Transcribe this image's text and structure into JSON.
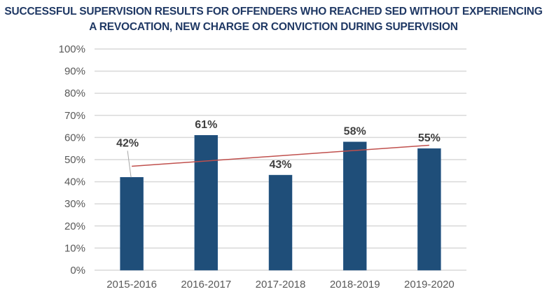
{
  "chart_data": {
    "type": "bar",
    "title_lines": [
      "SUCCESSFUL SUPERVISION RESULTS FOR OFFENDERS WHO REACHED SED WITHOUT EXPERIENCING",
      "A REVOCATION, NEW CHARGE OR CONVICTION DURING SUPERVISION"
    ],
    "categories": [
      "2015-2016",
      "2016-2017",
      "2017-2018",
      "2018-2019",
      "2019-2020"
    ],
    "values": [
      42,
      61,
      43,
      58,
      55
    ],
    "data_labels": [
      "42%",
      "61%",
      "43%",
      "58%",
      "55%"
    ],
    "xlabel": "",
    "ylabel": "",
    "ylim": [
      0,
      100
    ],
    "yticks": [
      0,
      10,
      20,
      30,
      40,
      50,
      60,
      70,
      80,
      90,
      100
    ],
    "ytick_labels": [
      "0%",
      "10%",
      "20%",
      "30%",
      "40%",
      "50%",
      "60%",
      "70%",
      "80%",
      "90%",
      "100%"
    ],
    "grid": true,
    "legend": "none",
    "trendline": {
      "type": "linear",
      "start_value": 47,
      "end_value": 56.5
    },
    "colors": {
      "bar": "#1f4e79",
      "trendline": "#c0504d",
      "grid": "#d9d9d9",
      "title": "#1f3864"
    }
  }
}
